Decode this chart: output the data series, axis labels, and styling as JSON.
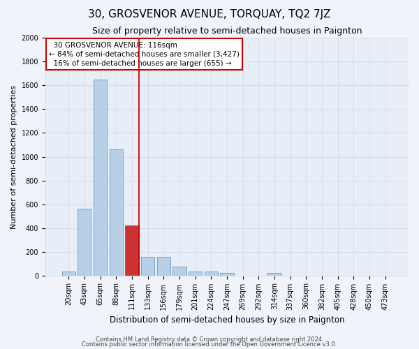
{
  "title": "30, GROSVENOR AVENUE, TORQUAY, TQ2 7JZ",
  "subtitle": "Size of property relative to semi-detached houses in Paignton",
  "xlabel": "Distribution of semi-detached houses by size in Paignton",
  "ylabel": "Number of semi-detached properties",
  "categories": [
    "20sqm",
    "43sqm",
    "65sqm",
    "88sqm",
    "111sqm",
    "133sqm",
    "156sqm",
    "179sqm",
    "201sqm",
    "224sqm",
    "247sqm",
    "269sqm",
    "292sqm",
    "314sqm",
    "337sqm",
    "360sqm",
    "382sqm",
    "405sqm",
    "428sqm",
    "450sqm",
    "473sqm"
  ],
  "values": [
    30,
    560,
    1650,
    1060,
    420,
    155,
    155,
    75,
    35,
    35,
    20,
    0,
    0,
    20,
    0,
    0,
    0,
    0,
    0,
    0,
    0
  ],
  "bar_color": "#b8cfe8",
  "bar_edge_color": "#6699cc",
  "highlight_bar_index": 4,
  "highlight_bar_color": "#cc3333",
  "highlight_bar_edge_color": "#cc3333",
  "vline_color": "#cc0000",
  "annotation_box_text": "  30 GROSVENOR AVENUE: 116sqm\n← 84% of semi-detached houses are smaller (3,427)\n  16% of semi-detached houses are larger (655) →",
  "annotation_box_color": "#ffffff",
  "annotation_box_edge_color": "#cc0000",
  "ylim": [
    0,
    2000
  ],
  "yticks": [
    0,
    200,
    400,
    600,
    800,
    1000,
    1200,
    1400,
    1600,
    1800,
    2000
  ],
  "footnote1": "Contains HM Land Registry data © Crown copyright and database right 2024.",
  "footnote2": "Contains public sector information licensed under the Open Government Licence v3.0.",
  "bg_color": "#f0f4fa",
  "plot_bg_color": "#e8eef8",
  "grid_color": "#d8dde8",
  "title_fontsize": 11,
  "subtitle_fontsize": 9,
  "xlabel_fontsize": 8.5,
  "ylabel_fontsize": 8,
  "tick_fontsize": 7,
  "footnote_fontsize": 6,
  "annotation_fontsize": 7.5
}
